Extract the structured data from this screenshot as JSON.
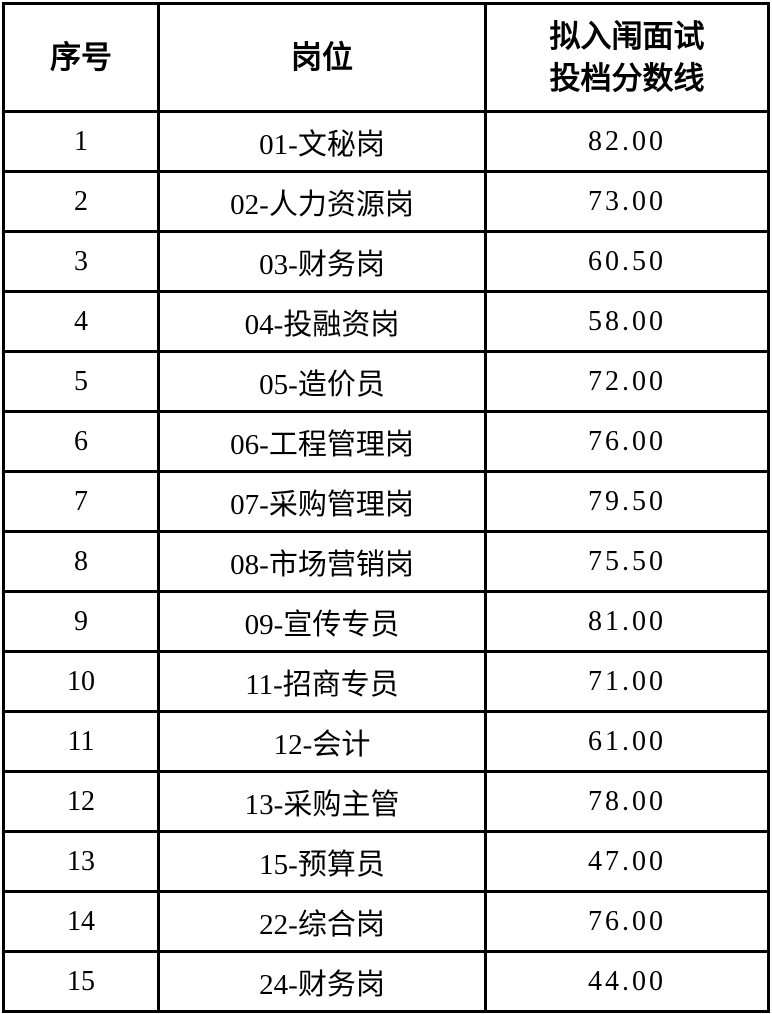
{
  "table": {
    "headers": {
      "serial": "序号",
      "position": "岗位",
      "score_line1": "拟入闱面试",
      "score_line2": "投档分数线"
    },
    "rows": [
      {
        "no": "1",
        "position": "01-文秘岗",
        "score": "82.00"
      },
      {
        "no": "2",
        "position": "02-人力资源岗",
        "score": "73.00"
      },
      {
        "no": "3",
        "position": "03-财务岗",
        "score": "60.50"
      },
      {
        "no": "4",
        "position": "04-投融资岗",
        "score": "58.00"
      },
      {
        "no": "5",
        "position": "05-造价员",
        "score": "72.00"
      },
      {
        "no": "6",
        "position": "06-工程管理岗",
        "score": "76.00"
      },
      {
        "no": "7",
        "position": "07-采购管理岗",
        "score": "79.50"
      },
      {
        "no": "8",
        "position": "08-市场营销岗",
        "score": "75.50"
      },
      {
        "no": "9",
        "position": "09-宣传专员",
        "score": "81.00"
      },
      {
        "no": "10",
        "position": "11-招商专员",
        "score": "71.00"
      },
      {
        "no": "11",
        "position": "12-会计",
        "score": "61.00"
      },
      {
        "no": "12",
        "position": "13-采购主管",
        "score": "78.00"
      },
      {
        "no": "13",
        "position": "15-预算员",
        "score": "47.00"
      },
      {
        "no": "14",
        "position": "22-综合岗",
        "score": "76.00"
      },
      {
        "no": "15",
        "position": "24-财务岗",
        "score": "44.00"
      }
    ],
    "colors": {
      "border": "#000000",
      "text": "#000000",
      "background": "#ffffff"
    }
  }
}
